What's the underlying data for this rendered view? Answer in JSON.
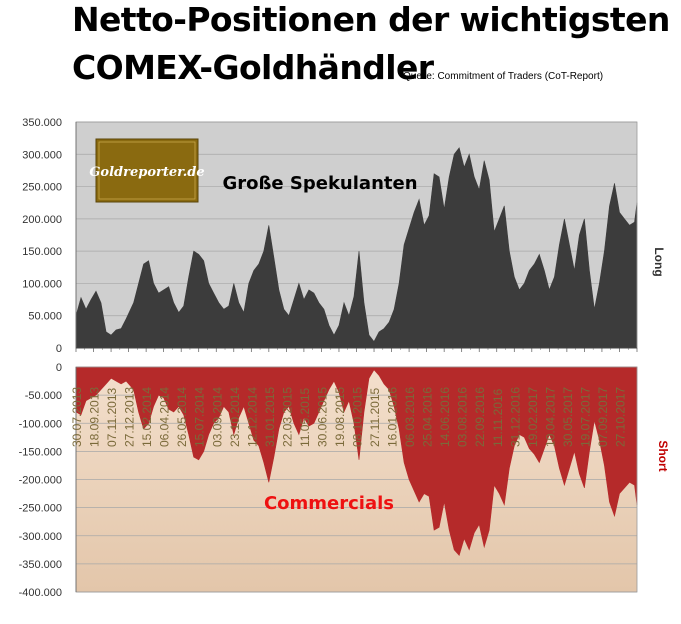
{
  "title_line1": "Netto-Positionen der wichtigsten",
  "title_line2": "COMEX-Goldhändler",
  "source": "Quelle: Commitment of Traders (CoT-Report)",
  "logo_text": "Goldreporter.de",
  "colors": {
    "long_fill": "#3c3c3c",
    "long_bg": "#cfcfcf",
    "short_fill": "#b52a2a",
    "short_bg": "#e8cdb3",
    "commercials_label": "#ee1111",
    "short_label": "#c00000",
    "date_label": "#7a6a3a",
    "logo_bg": "#8a6a10"
  },
  "chart_data": {
    "type": "area",
    "panels": [
      {
        "name": "Große Spekulanten",
        "side_label": "Long",
        "ylim": [
          0,
          350000
        ],
        "yticks": [
          "350.000",
          "300.000",
          "250.000",
          "200.000",
          "150.000",
          "100.000",
          "50.000",
          "0"
        ],
        "grid": true
      },
      {
        "name": "Commercials",
        "side_label": "Short",
        "ylim": [
          -400000,
          0
        ],
        "yticks": [
          "0",
          "-50.000",
          "-100.000",
          "-150.000",
          "-200.000",
          "-250.000",
          "-300.000",
          "-350.000",
          "-400.000"
        ],
        "grid": true
      }
    ],
    "x_tick_labels": [
      "30.07.2013",
      "18.09.2013",
      "07.11.2013",
      "27.12.2013",
      "15.02.2014",
      "06.04.2014",
      "26.05.2014",
      "15.07.2014",
      "03.09.2014",
      "23.10.2014",
      "12.12.2014",
      "31.01.2015",
      "22.03.2015",
      "11.05.2015",
      "30.06.2015",
      "19.08.2015",
      "08.10.2015",
      "27.11.2015",
      "16.01.2016",
      "06.03.2016",
      "25.04.2016",
      "14.06.2016",
      "03.08.2016",
      "22.09.2016",
      "11.11.2016",
      "31.12.2016",
      "19.02.2017",
      "10.04.2017",
      "30.05.2017",
      "19.07.2017",
      "07.09.2017",
      "27.10.2017"
    ],
    "x_start": "2013-07-30",
    "x_end": "2017-11-14",
    "series": [
      {
        "name": "Große Spekulanten",
        "points": [
          [
            "2013-07-30",
            50000
          ],
          [
            "2013-08-13",
            78000
          ],
          [
            "2013-08-27",
            60000
          ],
          [
            "2013-09-10",
            75000
          ],
          [
            "2013-09-24",
            88000
          ],
          [
            "2013-10-08",
            70000
          ],
          [
            "2013-10-22",
            25000
          ],
          [
            "2013-11-05",
            20000
          ],
          [
            "2013-11-19",
            28000
          ],
          [
            "2013-12-03",
            30000
          ],
          [
            "2013-12-17",
            45000
          ],
          [
            "2014-01-07",
            70000
          ],
          [
            "2014-01-21",
            100000
          ],
          [
            "2014-02-04",
            130000
          ],
          [
            "2014-02-18",
            135000
          ],
          [
            "2014-03-04",
            100000
          ],
          [
            "2014-03-18",
            85000
          ],
          [
            "2014-04-01",
            90000
          ],
          [
            "2014-04-15",
            95000
          ],
          [
            "2014-04-29",
            70000
          ],
          [
            "2014-05-13",
            55000
          ],
          [
            "2014-05-27",
            65000
          ],
          [
            "2014-06-10",
            110000
          ],
          [
            "2014-06-24",
            150000
          ],
          [
            "2014-07-08",
            145000
          ],
          [
            "2014-07-22",
            135000
          ],
          [
            "2014-08-05",
            100000
          ],
          [
            "2014-08-19",
            85000
          ],
          [
            "2014-09-02",
            70000
          ],
          [
            "2014-09-16",
            60000
          ],
          [
            "2014-09-30",
            65000
          ],
          [
            "2014-10-14",
            100000
          ],
          [
            "2014-10-28",
            70000
          ],
          [
            "2014-11-11",
            55000
          ],
          [
            "2014-11-25",
            100000
          ],
          [
            "2014-12-09",
            120000
          ],
          [
            "2014-12-23",
            130000
          ],
          [
            "2015-01-06",
            150000
          ],
          [
            "2015-01-20",
            190000
          ],
          [
            "2015-02-03",
            140000
          ],
          [
            "2015-02-17",
            90000
          ],
          [
            "2015-03-03",
            60000
          ],
          [
            "2015-03-17",
            50000
          ],
          [
            "2015-03-31",
            75000
          ],
          [
            "2015-04-14",
            100000
          ],
          [
            "2015-04-28",
            75000
          ],
          [
            "2015-05-12",
            90000
          ],
          [
            "2015-05-26",
            85000
          ],
          [
            "2015-06-09",
            70000
          ],
          [
            "2015-06-23",
            60000
          ],
          [
            "2015-07-07",
            35000
          ],
          [
            "2015-07-21",
            20000
          ],
          [
            "2015-08-04",
            35000
          ],
          [
            "2015-08-18",
            70000
          ],
          [
            "2015-09-01",
            50000
          ],
          [
            "2015-09-15",
            80000
          ],
          [
            "2015-09-29",
            150000
          ],
          [
            "2015-10-13",
            70000
          ],
          [
            "2015-10-27",
            20000
          ],
          [
            "2015-11-10",
            10000
          ],
          [
            "2015-11-24",
            25000
          ],
          [
            "2015-12-08",
            30000
          ],
          [
            "2015-12-22",
            40000
          ],
          [
            "2016-01-05",
            60000
          ],
          [
            "2016-01-19",
            100000
          ],
          [
            "2016-02-02",
            160000
          ],
          [
            "2016-02-16",
            185000
          ],
          [
            "2016-03-01",
            210000
          ],
          [
            "2016-03-15",
            230000
          ],
          [
            "2016-03-29",
            190000
          ],
          [
            "2016-04-12",
            205000
          ],
          [
            "2016-04-26",
            270000
          ],
          [
            "2016-05-10",
            265000
          ],
          [
            "2016-05-24",
            215000
          ],
          [
            "2016-06-07",
            265000
          ],
          [
            "2016-06-21",
            300000
          ],
          [
            "2016-07-05",
            310000
          ],
          [
            "2016-07-19",
            280000
          ],
          [
            "2016-08-02",
            300000
          ],
          [
            "2016-08-16",
            265000
          ],
          [
            "2016-08-30",
            245000
          ],
          [
            "2016-09-13",
            290000
          ],
          [
            "2016-09-27",
            260000
          ],
          [
            "2016-10-11",
            180000
          ],
          [
            "2016-10-25",
            200000
          ],
          [
            "2016-11-08",
            220000
          ],
          [
            "2016-11-22",
            150000
          ],
          [
            "2016-12-06",
            110000
          ],
          [
            "2016-12-20",
            90000
          ],
          [
            "2017-01-03",
            100000
          ],
          [
            "2017-01-17",
            120000
          ],
          [
            "2017-01-31",
            130000
          ],
          [
            "2017-02-14",
            145000
          ],
          [
            "2017-02-28",
            120000
          ],
          [
            "2017-03-14",
            90000
          ],
          [
            "2017-03-28",
            110000
          ],
          [
            "2017-04-11",
            160000
          ],
          [
            "2017-04-25",
            200000
          ],
          [
            "2017-05-09",
            160000
          ],
          [
            "2017-05-23",
            120000
          ],
          [
            "2017-06-06",
            175000
          ],
          [
            "2017-06-20",
            200000
          ],
          [
            "2017-07-04",
            120000
          ],
          [
            "2017-07-18",
            60000
          ],
          [
            "2017-08-01",
            100000
          ],
          [
            "2017-08-15",
            150000
          ],
          [
            "2017-08-29",
            220000
          ],
          [
            "2017-09-12",
            255000
          ],
          [
            "2017-09-26",
            210000
          ],
          [
            "2017-10-10",
            200000
          ],
          [
            "2017-10-24",
            190000
          ],
          [
            "2017-11-07",
            195000
          ],
          [
            "2017-11-14",
            225000
          ]
        ]
      },
      {
        "name": "Commercials",
        "points": [
          [
            "2013-07-30",
            -80000
          ],
          [
            "2013-08-13",
            -85000
          ],
          [
            "2013-08-27",
            -60000
          ],
          [
            "2013-09-10",
            -55000
          ],
          [
            "2013-09-24",
            -50000
          ],
          [
            "2013-10-08",
            -40000
          ],
          [
            "2013-10-22",
            -30000
          ],
          [
            "2013-11-05",
            -20000
          ],
          [
            "2013-11-19",
            -25000
          ],
          [
            "2013-12-03",
            -30000
          ],
          [
            "2013-12-17",
            -25000
          ],
          [
            "2014-01-07",
            -40000
          ],
          [
            "2014-01-21",
            -80000
          ],
          [
            "2014-02-04",
            -110000
          ],
          [
            "2014-02-18",
            -100000
          ],
          [
            "2014-03-04",
            -70000
          ],
          [
            "2014-03-18",
            -50000
          ],
          [
            "2014-04-01",
            -55000
          ],
          [
            "2014-04-15",
            -75000
          ],
          [
            "2014-04-29",
            -80000
          ],
          [
            "2014-05-13",
            -70000
          ],
          [
            "2014-05-27",
            -85000
          ],
          [
            "2014-06-10",
            -120000
          ],
          [
            "2014-06-24",
            -160000
          ],
          [
            "2014-07-08",
            -165000
          ],
          [
            "2014-07-22",
            -150000
          ],
          [
            "2014-08-05",
            -120000
          ],
          [
            "2014-08-19",
            -100000
          ],
          [
            "2014-09-02",
            -90000
          ],
          [
            "2014-09-16",
            -70000
          ],
          [
            "2014-09-30",
            -80000
          ],
          [
            "2014-10-14",
            -120000
          ],
          [
            "2014-10-28",
            -90000
          ],
          [
            "2014-11-11",
            -70000
          ],
          [
            "2014-11-25",
            -100000
          ],
          [
            "2014-12-09",
            -130000
          ],
          [
            "2014-12-23",
            -140000
          ],
          [
            "2015-01-06",
            -170000
          ],
          [
            "2015-01-20",
            -205000
          ],
          [
            "2015-02-03",
            -160000
          ],
          [
            "2015-02-17",
            -110000
          ],
          [
            "2015-03-03",
            -80000
          ],
          [
            "2015-03-17",
            -70000
          ],
          [
            "2015-03-31",
            -100000
          ],
          [
            "2015-04-14",
            -120000
          ],
          [
            "2015-04-28",
            -90000
          ],
          [
            "2015-05-12",
            -105000
          ],
          [
            "2015-05-26",
            -100000
          ],
          [
            "2015-06-09",
            -80000
          ],
          [
            "2015-06-23",
            -60000
          ],
          [
            "2015-07-07",
            -40000
          ],
          [
            "2015-07-21",
            -25000
          ],
          [
            "2015-08-04",
            -45000
          ],
          [
            "2015-08-18",
            -80000
          ],
          [
            "2015-09-01",
            -60000
          ],
          [
            "2015-09-15",
            -100000
          ],
          [
            "2015-09-29",
            -165000
          ],
          [
            "2015-10-13",
            -80000
          ],
          [
            "2015-10-27",
            -20000
          ],
          [
            "2015-11-10",
            -5000
          ],
          [
            "2015-11-24",
            -15000
          ],
          [
            "2015-12-08",
            -30000
          ],
          [
            "2015-12-22",
            -40000
          ],
          [
            "2016-01-05",
            -70000
          ],
          [
            "2016-01-19",
            -110000
          ],
          [
            "2016-02-02",
            -170000
          ],
          [
            "2016-02-16",
            -200000
          ],
          [
            "2016-03-01",
            -220000
          ],
          [
            "2016-03-15",
            -240000
          ],
          [
            "2016-03-29",
            -225000
          ],
          [
            "2016-04-12",
            -230000
          ],
          [
            "2016-04-26",
            -290000
          ],
          [
            "2016-05-10",
            -285000
          ],
          [
            "2016-05-24",
            -240000
          ],
          [
            "2016-06-07",
            -290000
          ],
          [
            "2016-06-21",
            -325000
          ],
          [
            "2016-07-05",
            -335000
          ],
          [
            "2016-07-19",
            -305000
          ],
          [
            "2016-08-02",
            -325000
          ],
          [
            "2016-08-16",
            -295000
          ],
          [
            "2016-08-30",
            -280000
          ],
          [
            "2016-09-13",
            -320000
          ],
          [
            "2016-09-27",
            -290000
          ],
          [
            "2016-10-11",
            -210000
          ],
          [
            "2016-10-25",
            -225000
          ],
          [
            "2016-11-08",
            -245000
          ],
          [
            "2016-11-22",
            -180000
          ],
          [
            "2016-12-06",
            -140000
          ],
          [
            "2016-12-20",
            -120000
          ],
          [
            "2017-01-03",
            -125000
          ],
          [
            "2017-01-17",
            -145000
          ],
          [
            "2017-01-31",
            -155000
          ],
          [
            "2017-02-14",
            -170000
          ],
          [
            "2017-02-28",
            -145000
          ],
          [
            "2017-03-14",
            -120000
          ],
          [
            "2017-03-28",
            -140000
          ],
          [
            "2017-04-11",
            -180000
          ],
          [
            "2017-04-25",
            -210000
          ],
          [
            "2017-05-09",
            -180000
          ],
          [
            "2017-05-23",
            -150000
          ],
          [
            "2017-06-06",
            -190000
          ],
          [
            "2017-06-20",
            -215000
          ],
          [
            "2017-07-04",
            -150000
          ],
          [
            "2017-07-18",
            -95000
          ],
          [
            "2017-08-01",
            -130000
          ],
          [
            "2017-08-15",
            -175000
          ],
          [
            "2017-08-29",
            -240000
          ],
          [
            "2017-09-12",
            -265000
          ],
          [
            "2017-09-26",
            -225000
          ],
          [
            "2017-10-10",
            -215000
          ],
          [
            "2017-10-24",
            -205000
          ],
          [
            "2017-11-07",
            -210000
          ],
          [
            "2017-11-14",
            -245000
          ]
        ]
      }
    ]
  }
}
